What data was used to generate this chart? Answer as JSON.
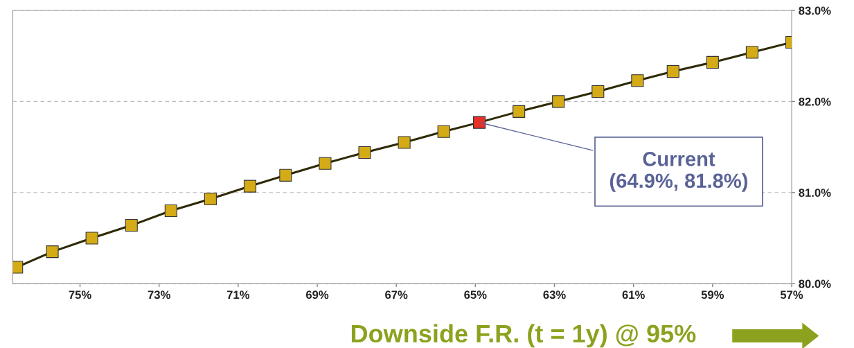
{
  "chart_data": {
    "type": "line",
    "xlabel": "Downside F.R. (t = 1y) @ 95%",
    "x": [
      76.6,
      75.7,
      74.7,
      73.7,
      72.7,
      71.7,
      70.7,
      69.8,
      68.8,
      67.8,
      66.8,
      65.8,
      64.9,
      63.9,
      62.9,
      61.9,
      60.9,
      60.0,
      59.0,
      58.0,
      57.0
    ],
    "series": [
      {
        "color": "#2e2a05",
        "values": [
          80.18,
          80.35,
          80.5,
          80.64,
          80.8,
          80.93,
          81.07,
          81.19,
          81.32,
          81.44,
          81.55,
          81.67,
          81.77,
          81.89,
          82.0,
          82.11,
          82.23,
          82.33,
          82.43,
          82.54,
          82.65
        ],
        "colors": [
          "#d4ab17",
          "#d4ab17",
          "#d4ab17",
          "#d4ab17",
          "#d4ab17",
          "#d4ab17",
          "#d4ab17",
          "#d4ab17",
          "#d4ab17",
          "#d4ab17",
          "#d4ab17",
          "#d4ab17",
          "#e8302a",
          "#d4ab17",
          "#d4ab17",
          "#d4ab17",
          "#d4ab17",
          "#d4ab17",
          "#d4ab17",
          "#d4ab17",
          "#d4ab17"
        ]
      }
    ],
    "xlim": [
      76.7,
      57.0
    ],
    "xticks": [
      {
        "value": 75,
        "label": "75%"
      },
      {
        "value": 73,
        "label": "73%"
      },
      {
        "value": 71,
        "label": "71%"
      },
      {
        "value": 69,
        "label": "69%"
      },
      {
        "value": 67,
        "label": "67%"
      },
      {
        "value": 65,
        "label": "65%"
      },
      {
        "value": 63,
        "label": "63%"
      },
      {
        "value": 61,
        "label": "61%"
      },
      {
        "value": 59,
        "label": "59%"
      },
      {
        "value": 57,
        "label": "57%"
      }
    ],
    "ylim": [
      80,
      83
    ],
    "yticks": [
      {
        "value": 80,
        "label": "80.0%"
      },
      {
        "value": 81,
        "label": "81.0%"
      },
      {
        "value": 82,
        "label": "82.0%"
      },
      {
        "value": 83,
        "label": "83.0%"
      }
    ],
    "grid": "y",
    "marker": "square",
    "line_style": "solid",
    "legend": false,
    "annotations": [
      {
        "text": "Current\n(64.9%, 81.8%)",
        "x": 64.9,
        "y": 81.77
      }
    ]
  }
}
